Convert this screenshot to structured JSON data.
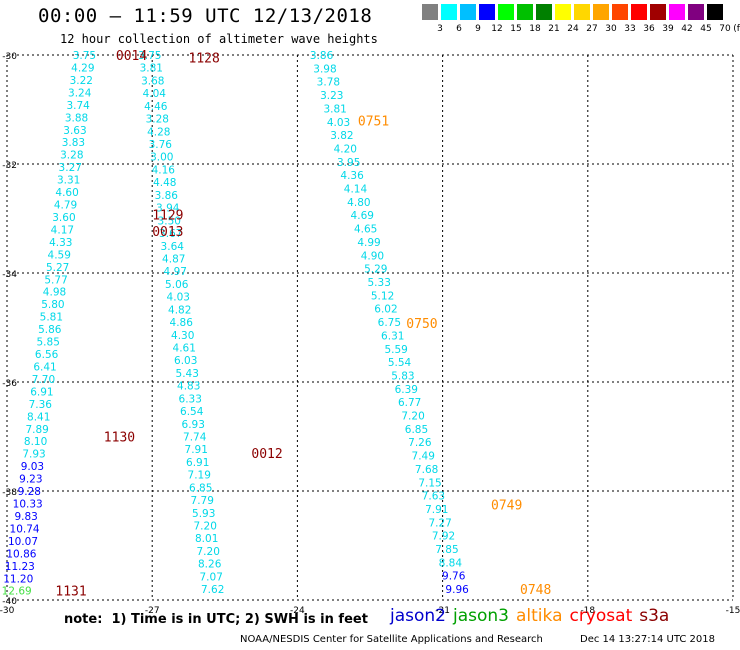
{
  "header": {
    "title": "00:00 – 11:59 UTC 12/13/2018",
    "subtitle": "12 hour collection of altimeter wave heights"
  },
  "color_scale": {
    "labels": [
      "3",
      "6",
      "9",
      "12",
      "15",
      "18",
      "21",
      "24",
      "27",
      "30",
      "33",
      "36",
      "39",
      "42",
      "45",
      "70",
      "(ft)"
    ],
    "colors": [
      "#808080",
      "#00ffff",
      "#00bfff",
      "#0000ff",
      "#00ff00",
      "#00c000",
      "#008000",
      "#ffff00",
      "#ffd700",
      "#ffa500",
      "#ff4500",
      "#ff0000",
      "#a00000",
      "#ff00ff",
      "#800080",
      "#000000"
    ]
  },
  "footer": {
    "note": "note:  1) Time is in UTC; 2) SWH is in feet",
    "credit": "NOAA/NESDIS Center for Satellite Applications and Research",
    "timestamp": "Dec 14 13:27:14 UTC 2018"
  },
  "legend": [
    {
      "name": "jason2",
      "color": "#0000cc"
    },
    {
      "name": "jason3",
      "color": "#00a000"
    },
    {
      "name": "altika",
      "color": "#ff8c00"
    },
    {
      "name": "cryosat",
      "color": "#ff0000"
    },
    {
      "name": "s3a",
      "color": "#8b0000"
    }
  ],
  "chart_data": {
    "type": "scatter",
    "title": "12 hour collection of altimeter wave heights",
    "xlabel": "",
    "ylabel": "",
    "xlim": [
      -30,
      -15
    ],
    "ylim": [
      -40,
      -30
    ],
    "xticks": [
      -30,
      -27,
      -24,
      -21,
      -18,
      -15
    ],
    "yticks": [
      -30,
      -32,
      -34,
      -36,
      -38,
      -40
    ],
    "grid": true,
    "units": "ft",
    "tracks": [
      {
        "satellite": "s3a",
        "start_lon": -28.4,
        "end_lon": -29.8,
        "start_lat": -30.0,
        "end_lat": -39.83,
        "values": [
          "3.75",
          "4.29",
          "3.22",
          "3.24",
          "3.74",
          "3.88",
          "3.63",
          "3.83",
          "3.28",
          "3.27",
          "3.31",
          "4.60",
          "4.79",
          "3.60",
          "4.17",
          "4.33",
          "4.59",
          "5.27",
          "5.77",
          "4.98",
          "5.80",
          "5.81",
          "5.86",
          "5.85",
          "6.56",
          "6.41",
          "7.70",
          "6.91",
          "7.36",
          "8.41",
          "7.89",
          "8.10",
          "7.93",
          "9.03",
          "9.23",
          "9.28",
          "10.33",
          "9.83",
          "10.74",
          "10.07",
          "10.86",
          "11.23",
          "11.20",
          "12.69"
        ],
        "labels": [
          {
            "text": "0014",
            "lat": -30.0,
            "lon": -27.75
          },
          {
            "text": "1130",
            "lat": -37.0,
            "lon": -28.0
          },
          {
            "text": "1131",
            "lat": -39.83,
            "lon": -29.0
          }
        ]
      },
      {
        "satellite": "s3a",
        "start_lon": -27.05,
        "end_lon": -25.75,
        "start_lat": -30.0,
        "end_lat": -39.8,
        "values": [
          "3.75",
          "3.81",
          "3.68",
          "4.04",
          "4.46",
          "3.28",
          "4.28",
          "3.76",
          "3.00",
          "4.16",
          "4.48",
          "3.86",
          "3.94",
          "3.50",
          "3.67",
          "3.64",
          "4.87",
          "4.97",
          "5.06",
          "4.03",
          "4.82",
          "4.86",
          "4.30",
          "4.61",
          "6.03",
          "5.43",
          "4.83",
          "6.33",
          "6.54",
          "6.93",
          "7.74",
          "7.91",
          "6.91",
          "7.19",
          "6.85",
          "7.79",
          "5.93",
          "7.20",
          "8.01",
          "7.20",
          "8.26",
          "7.07",
          "7.62"
        ],
        "labels": [
          {
            "text": "1128",
            "lat": -30.05,
            "lon": -26.25
          },
          {
            "text": "1129",
            "lat": -32.93,
            "lon": -27.0
          },
          {
            "text": "0013",
            "lat": -33.23,
            "lon": -27.0
          },
          {
            "text": "0012",
            "lat": -37.3,
            "lon": -24.95
          }
        ]
      },
      {
        "satellite": "altika",
        "start_lon": -23.5,
        "end_lon": -20.7,
        "start_lat": -30.0,
        "end_lat": -39.8,
        "values": [
          "3.86",
          "3.98",
          "3.78",
          "3.23",
          "3.81",
          "4.03",
          "3.82",
          "4.20",
          "3.95",
          "4.36",
          "4.14",
          "4.80",
          "4.69",
          "4.65",
          "4.99",
          "4.90",
          "5.29",
          "5.33",
          "5.12",
          "6.02",
          "6.75",
          "6.31",
          "5.59",
          "5.54",
          "5.83",
          "6.39",
          "6.77",
          "7.20",
          "6.85",
          "7.26",
          "7.49",
          "7.68",
          "7.15",
          "7.63",
          "7.91",
          "7.27",
          "7.92",
          "7.85",
          "8.84",
          "9.76",
          "9.96"
        ],
        "labels": [
          {
            "text": "0751",
            "lat": -31.2,
            "lon": -22.75
          },
          {
            "text": "0750",
            "lat": -34.92,
            "lon": -21.75
          },
          {
            "text": "0749",
            "lat": -38.25,
            "lon": -20.0
          },
          {
            "text": "0748",
            "lat": -39.8,
            "lon": -19.4
          }
        ]
      }
    ]
  }
}
